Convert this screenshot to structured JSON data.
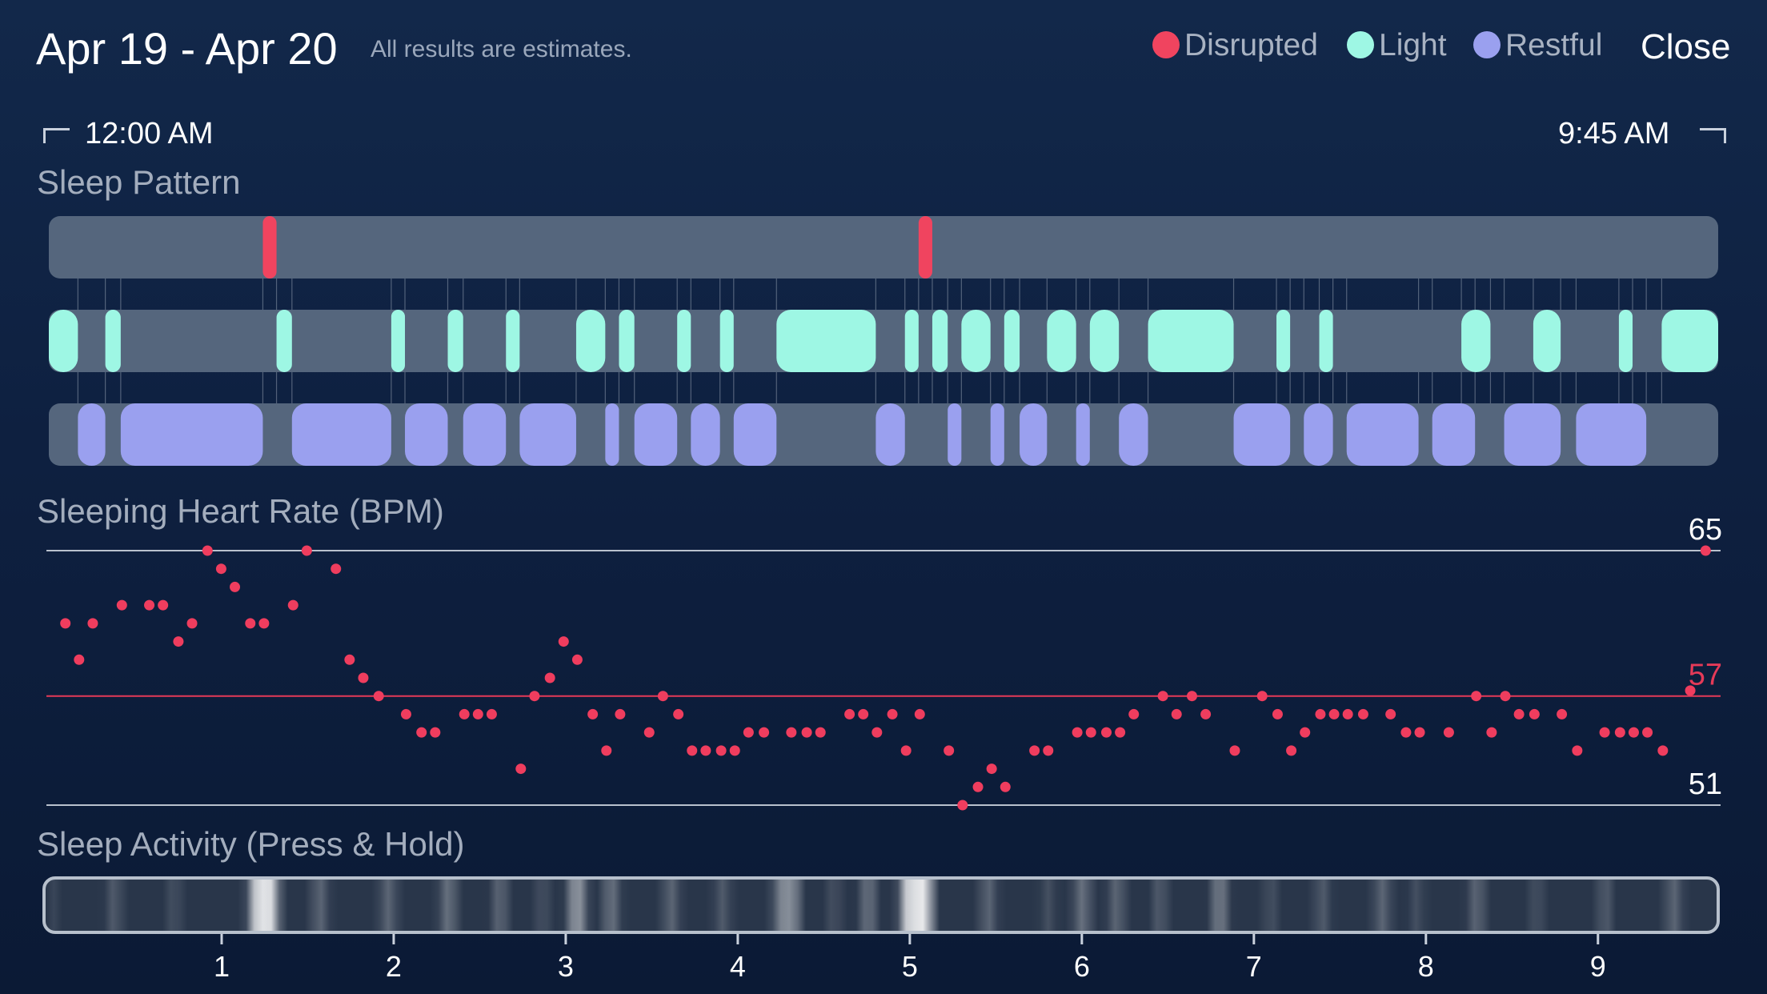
{
  "header": {
    "title": "Apr 19 - Apr 20",
    "subtitle": "All results are estimates.",
    "close_label": "Close"
  },
  "legend": [
    {
      "label": "Disrupted",
      "color": "#f0445f"
    },
    {
      "label": "Light",
      "color": "#9ef7e4"
    },
    {
      "label": "Restful",
      "color": "#9aa0ef"
    }
  ],
  "time_range": {
    "start": "12:00 AM",
    "end": "9:45 AM"
  },
  "sections": {
    "sleep_pattern": "Sleep Pattern",
    "heart_rate": "Sleeping Heart Rate (BPM)",
    "activity": "Sleep Activity (Press & Hold)"
  },
  "colors": {
    "track": "#55667d",
    "disrupted": "#f0445f",
    "light": "#9ef7e4",
    "restful": "#9aa0ef",
    "hr_dot": "#ef3d5e",
    "avg_line": "#e53a58",
    "guide_line": "#b9c1cd"
  },
  "chart_data": [
    {
      "type": "timeline",
      "title": "Sleep Pattern",
      "x_unit": "hours since 12:00 AM",
      "xlim": [
        0,
        9.75
      ],
      "rows": [
        "Disrupted",
        "Light",
        "Restful"
      ],
      "segments": {
        "Disrupted": [
          [
            1.25,
            1.33
          ],
          [
            5.08,
            5.16
          ]
        ],
        "Light": [
          [
            0,
            0.17
          ],
          [
            0.33,
            0.42
          ],
          [
            1.33,
            1.42
          ],
          [
            2.0,
            2.08
          ],
          [
            2.33,
            2.42
          ],
          [
            2.67,
            2.75
          ],
          [
            3.08,
            3.25
          ],
          [
            3.33,
            3.42
          ],
          [
            3.67,
            3.75
          ],
          [
            3.92,
            4.0
          ],
          [
            4.25,
            4.83
          ],
          [
            5.0,
            5.08
          ],
          [
            5.16,
            5.25
          ],
          [
            5.33,
            5.5
          ],
          [
            5.58,
            5.67
          ],
          [
            5.83,
            6.0
          ],
          [
            6.08,
            6.25
          ],
          [
            6.42,
            6.92
          ],
          [
            7.17,
            7.25
          ],
          [
            7.42,
            7.5
          ],
          [
            8.25,
            8.42
          ],
          [
            8.67,
            8.83
          ],
          [
            9.17,
            9.25
          ],
          [
            9.42,
            9.75
          ]
        ],
        "Restful": [
          [
            0.17,
            0.33
          ],
          [
            0.42,
            1.25
          ],
          [
            1.42,
            2.0
          ],
          [
            2.08,
            2.33
          ],
          [
            2.42,
            2.67
          ],
          [
            2.75,
            3.08
          ],
          [
            3.25,
            3.33
          ],
          [
            3.42,
            3.67
          ],
          [
            3.75,
            3.92
          ],
          [
            4.0,
            4.25
          ],
          [
            4.83,
            5.0
          ],
          [
            5.25,
            5.33
          ],
          [
            5.5,
            5.58
          ],
          [
            5.67,
            5.83
          ],
          [
            6.0,
            6.08
          ],
          [
            6.25,
            6.42
          ],
          [
            6.92,
            7.25
          ],
          [
            7.33,
            7.5
          ],
          [
            7.58,
            8.0
          ],
          [
            8.08,
            8.33
          ],
          [
            8.5,
            8.83
          ],
          [
            8.92,
            9.33
          ]
        ]
      }
    },
    {
      "type": "scatter",
      "title": "Sleeping Heart Rate (BPM)",
      "ylim": [
        51,
        65
      ],
      "y_ticks": [
        "65",
        "57",
        "51"
      ],
      "average": 57,
      "x_unit": "hours since 12:00 AM",
      "points": [
        [
          0.05,
          61
        ],
        [
          0.13,
          59
        ],
        [
          0.21,
          61
        ],
        [
          0.38,
          62
        ],
        [
          0.54,
          62
        ],
        [
          0.62,
          62
        ],
        [
          0.71,
          60
        ],
        [
          0.79,
          61
        ],
        [
          0.88,
          65
        ],
        [
          0.96,
          64
        ],
        [
          1.04,
          63
        ],
        [
          1.13,
          61
        ],
        [
          1.21,
          61
        ],
        [
          1.38,
          62
        ],
        [
          1.46,
          65
        ],
        [
          1.63,
          64
        ],
        [
          1.71,
          59
        ],
        [
          1.79,
          58
        ],
        [
          1.88,
          57
        ],
        [
          2.04,
          56
        ],
        [
          2.13,
          55
        ],
        [
          2.21,
          55
        ],
        [
          2.38,
          56
        ],
        [
          2.46,
          56
        ],
        [
          2.54,
          56
        ],
        [
          2.71,
          53
        ],
        [
          2.79,
          57
        ],
        [
          2.88,
          58
        ],
        [
          2.96,
          60
        ],
        [
          3.04,
          59
        ],
        [
          3.13,
          56
        ],
        [
          3.21,
          54
        ],
        [
          3.29,
          56
        ],
        [
          3.46,
          55
        ],
        [
          3.54,
          57
        ],
        [
          3.63,
          56
        ],
        [
          3.71,
          54
        ],
        [
          3.79,
          54
        ],
        [
          3.88,
          54
        ],
        [
          3.96,
          54
        ],
        [
          4.04,
          55
        ],
        [
          4.13,
          55
        ],
        [
          4.29,
          55
        ],
        [
          4.38,
          55
        ],
        [
          4.46,
          55
        ],
        [
          4.63,
          56
        ],
        [
          4.71,
          56
        ],
        [
          4.79,
          55
        ],
        [
          4.88,
          56
        ],
        [
          4.96,
          54
        ],
        [
          5.04,
          56
        ],
        [
          5.21,
          54
        ],
        [
          5.29,
          51
        ],
        [
          5.38,
          52
        ],
        [
          5.46,
          53
        ],
        [
          5.54,
          52
        ],
        [
          5.71,
          54
        ],
        [
          5.79,
          54
        ],
        [
          5.96,
          55
        ],
        [
          6.04,
          55
        ],
        [
          6.13,
          55
        ],
        [
          6.21,
          55
        ],
        [
          6.29,
          56
        ],
        [
          6.46,
          57
        ],
        [
          6.54,
          56
        ],
        [
          6.63,
          57
        ],
        [
          6.71,
          56
        ],
        [
          6.88,
          54
        ],
        [
          7.04,
          57
        ],
        [
          7.13,
          56
        ],
        [
          7.21,
          54
        ],
        [
          7.29,
          55
        ],
        [
          7.38,
          56
        ],
        [
          7.46,
          56
        ],
        [
          7.54,
          56
        ],
        [
          7.63,
          56
        ],
        [
          7.79,
          56
        ],
        [
          7.88,
          55
        ],
        [
          7.96,
          55
        ],
        [
          8.13,
          55
        ],
        [
          8.29,
          57
        ],
        [
          8.38,
          55
        ],
        [
          8.46,
          57
        ],
        [
          8.54,
          56
        ],
        [
          8.63,
          56
        ],
        [
          8.79,
          56
        ],
        [
          8.88,
          54
        ],
        [
          9.04,
          55
        ],
        [
          9.13,
          55
        ],
        [
          9.21,
          55
        ],
        [
          9.29,
          55
        ],
        [
          9.38,
          54
        ],
        [
          9.54,
          57.3
        ],
        [
          9.63,
          65
        ]
      ]
    },
    {
      "type": "heatmap",
      "title": "Sleep Activity (Press & Hold)",
      "x_ticks": [
        "1",
        "2",
        "3",
        "4",
        "5",
        "6",
        "7",
        "8",
        "9"
      ],
      "x_unit": "hours since 12:00 AM",
      "xlim": [
        0,
        9.75
      ],
      "intensity": [
        [
          0.05,
          0.15
        ],
        [
          0.4,
          0.25
        ],
        [
          0.75,
          0.2
        ],
        [
          1.25,
          0.95
        ],
        [
          1.3,
          0.9
        ],
        [
          1.6,
          0.3
        ],
        [
          2.0,
          0.3
        ],
        [
          2.35,
          0.35
        ],
        [
          2.65,
          0.3
        ],
        [
          2.9,
          0.2
        ],
        [
          3.1,
          0.55
        ],
        [
          3.3,
          0.35
        ],
        [
          3.65,
          0.3
        ],
        [
          3.95,
          0.25
        ],
        [
          4.3,
          0.45
        ],
        [
          4.35,
          0.5
        ],
        [
          4.6,
          0.2
        ],
        [
          4.8,
          0.35
        ],
        [
          5.05,
          0.95
        ],
        [
          5.12,
          0.9
        ],
        [
          5.5,
          0.3
        ],
        [
          5.85,
          0.2
        ],
        [
          6.05,
          0.35
        ],
        [
          6.25,
          0.3
        ],
        [
          6.5,
          0.25
        ],
        [
          6.85,
          0.4
        ],
        [
          7.15,
          0.2
        ],
        [
          7.45,
          0.25
        ],
        [
          7.8,
          0.3
        ],
        [
          8.0,
          0.2
        ],
        [
          8.35,
          0.3
        ],
        [
          8.7,
          0.2
        ],
        [
          9.1,
          0.25
        ],
        [
          9.5,
          0.3
        ]
      ]
    }
  ]
}
